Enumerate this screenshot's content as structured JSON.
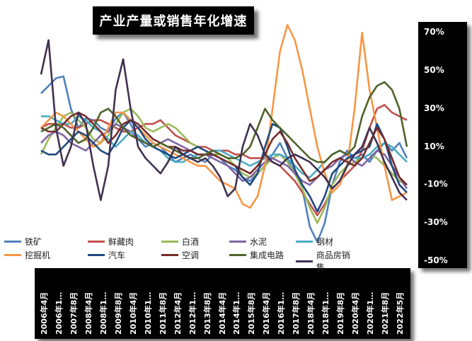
{
  "title": "产业产量或销售年化增速",
  "chart_data": {
    "type": "line",
    "title": "产业产量或销售年化增速",
    "ylim": [
      -0.5,
      0.7
    ],
    "yticks": [
      "70%",
      "50%",
      "30%",
      "10%",
      "-10%",
      "-30%",
      "-50%"
    ],
    "ytick_values": [
      0.7,
      0.5,
      0.3,
      0.1,
      -0.1,
      -0.3,
      -0.5
    ],
    "xticks": [
      "2006年4月",
      "2006年1…",
      "2007年8月",
      "2008年4月",
      "2008年1…",
      "2009年8月",
      "2010年4月",
      "2010年1…",
      "2011年8月",
      "2012年4月",
      "2012年1…",
      "2013年8月",
      "2014年4月",
      "2014年1…",
      "2015年8月",
      "2016年4月",
      "2016年1…",
      "2017年8月",
      "2018年4月",
      "2018年1…",
      "2019年8月",
      "2020年4月",
      "2020年1…",
      "2021年8月",
      "2022年5月"
    ],
    "legend_position": "bottom-left",
    "series": [
      {
        "name": "铁矿",
        "color": "#4F81BD",
        "values": [
          0.38,
          0.42,
          0.46,
          0.47,
          0.3,
          0.2,
          0.25,
          0.24,
          0.2,
          0.18,
          0.25,
          0.28,
          0.22,
          0.14,
          0.1,
          0.12,
          0.1,
          0.06,
          0.02,
          0.04,
          0.06,
          0.04,
          0.02,
          0.06,
          0.04,
          0.0,
          -0.02,
          -0.06,
          -0.08,
          -0.04,
          0.0,
          0.06,
          0.12,
          0.04,
          -0.04,
          -0.12,
          -0.32,
          -0.4,
          -0.3,
          -0.1,
          0.02,
          0.08,
          0.04,
          0.06,
          0.02,
          0.08,
          0.12,
          0.08,
          0.12,
          0.04
        ]
      },
      {
        "name": "鲜藏肉",
        "color": "#C0504D",
        "values": [
          0.2,
          0.22,
          0.22,
          0.22,
          0.2,
          0.2,
          0.22,
          0.24,
          0.24,
          0.22,
          0.2,
          0.18,
          0.18,
          0.2,
          0.22,
          0.22,
          0.24,
          0.2,
          0.16,
          0.14,
          0.12,
          0.1,
          0.1,
          0.08,
          0.08,
          0.08,
          0.06,
          0.06,
          0.04,
          0.04,
          0.04,
          0.02,
          0.0,
          -0.04,
          -0.08,
          -0.14,
          -0.2,
          -0.26,
          -0.2,
          -0.12,
          -0.08,
          -0.04,
          0.0,
          0.08,
          0.2,
          0.3,
          0.32,
          0.28,
          0.26,
          0.24
        ]
      },
      {
        "name": "白酒",
        "color": "#9BBB59",
        "values": [
          0.06,
          0.14,
          0.2,
          0.26,
          0.28,
          0.24,
          0.2,
          0.14,
          0.12,
          0.16,
          0.22,
          0.28,
          0.3,
          0.26,
          0.2,
          0.18,
          0.2,
          0.22,
          0.2,
          0.16,
          0.12,
          0.1,
          0.08,
          0.06,
          0.06,
          0.04,
          0.0,
          -0.04,
          -0.06,
          -0.04,
          0.0,
          0.04,
          0.06,
          0.02,
          -0.04,
          -0.12,
          -0.22,
          -0.3,
          -0.22,
          -0.1,
          -0.04,
          0.0,
          0.02,
          0.04,
          0.06,
          0.04,
          0.0,
          -0.04,
          -0.08,
          -0.1
        ]
      },
      {
        "name": "水泥",
        "color": "#8064A2",
        "values": [
          0.12,
          0.16,
          0.18,
          0.16,
          0.12,
          0.1,
          0.08,
          0.12,
          0.16,
          0.18,
          0.22,
          0.2,
          0.18,
          0.14,
          0.12,
          0.1,
          0.12,
          0.14,
          0.12,
          0.1,
          0.08,
          0.06,
          0.06,
          0.04,
          0.02,
          0.0,
          -0.04,
          -0.08,
          -0.06,
          -0.02,
          0.02,
          0.04,
          0.02,
          0.0,
          -0.04,
          -0.08,
          -0.1,
          -0.06,
          -0.02,
          0.0,
          0.04,
          0.06,
          0.02,
          0.0,
          0.04,
          0.08,
          0.06,
          0.0,
          -0.06,
          -0.12
        ]
      },
      {
        "name": "钢材",
        "color": "#4BACC6",
        "values": [
          0.26,
          0.26,
          0.24,
          0.22,
          0.22,
          0.26,
          0.24,
          0.2,
          0.18,
          0.14,
          0.1,
          0.14,
          0.18,
          0.16,
          0.12,
          0.1,
          0.08,
          0.04,
          0.02,
          0.02,
          0.04,
          0.06,
          0.06,
          0.08,
          0.08,
          0.06,
          0.04,
          0.02,
          0.0,
          0.02,
          0.04,
          0.06,
          0.06,
          0.04,
          0.0,
          -0.04,
          -0.06,
          -0.02,
          0.02,
          0.06,
          0.08,
          0.06,
          0.04,
          0.04,
          0.06,
          0.1,
          0.12,
          0.1,
          0.06,
          0.02
        ]
      },
      {
        "name": "挖掘机",
        "color": "#F79646",
        "values": [
          0.2,
          0.24,
          0.28,
          0.26,
          0.22,
          0.18,
          0.14,
          0.1,
          0.12,
          0.2,
          0.28,
          0.28,
          0.24,
          0.2,
          0.16,
          0.12,
          0.1,
          0.08,
          0.06,
          0.04,
          0.02,
          0.0,
          0.0,
          -0.04,
          -0.08,
          -0.1,
          -0.12,
          -0.2,
          -0.22,
          -0.16,
          0.0,
          0.3,
          0.6,
          0.74,
          0.66,
          0.5,
          0.3,
          0.1,
          -0.04,
          -0.14,
          -0.1,
          0.0,
          0.3,
          0.7,
          0.4,
          0.2,
          0.0,
          -0.18,
          -0.16,
          -0.14
        ]
      },
      {
        "name": "汽车",
        "color": "#1F497D",
        "values": [
          0.08,
          0.06,
          0.06,
          0.1,
          0.14,
          0.18,
          0.16,
          0.12,
          0.08,
          0.06,
          0.12,
          0.2,
          0.24,
          0.2,
          0.14,
          0.1,
          0.08,
          0.06,
          0.04,
          0.06,
          0.08,
          0.1,
          0.08,
          0.06,
          0.04,
          0.02,
          0.0,
          -0.06,
          -0.1,
          -0.04,
          0.1,
          0.22,
          0.2,
          0.1,
          -0.02,
          -0.1,
          -0.16,
          -0.24,
          -0.16,
          -0.04,
          0.0,
          0.04,
          0.06,
          0.08,
          0.1,
          0.22,
          0.14,
          0.0,
          -0.1,
          -0.14
        ]
      },
      {
        "name": "空调",
        "color": "#772C2A",
        "values": [
          0.2,
          0.18,
          0.18,
          0.22,
          0.26,
          0.28,
          0.26,
          0.22,
          0.18,
          0.12,
          0.16,
          0.22,
          0.24,
          0.22,
          0.18,
          0.14,
          0.12,
          0.1,
          0.1,
          0.08,
          0.08,
          0.06,
          0.06,
          0.06,
          0.04,
          0.02,
          0.0,
          -0.02,
          -0.04,
          0.0,
          0.06,
          0.14,
          0.18,
          0.12,
          0.04,
          -0.02,
          -0.08,
          -0.06,
          -0.02,
          0.02,
          0.04,
          0.02,
          0.0,
          0.04,
          0.12,
          0.2,
          0.14,
          0.04,
          -0.06,
          -0.1
        ]
      },
      {
        "name": "集成电路",
        "color": "#4F6228",
        "values": [
          0.18,
          0.2,
          0.22,
          0.2,
          0.16,
          0.12,
          0.14,
          0.2,
          0.28,
          0.3,
          0.26,
          0.2,
          0.16,
          0.14,
          0.12,
          0.1,
          0.12,
          0.1,
          0.08,
          0.06,
          0.04,
          0.04,
          0.06,
          0.08,
          0.06,
          0.04,
          0.04,
          0.06,
          0.1,
          0.2,
          0.3,
          0.24,
          0.2,
          0.16,
          0.12,
          0.08,
          0.04,
          0.02,
          0.02,
          0.06,
          0.08,
          0.06,
          0.1,
          0.26,
          0.36,
          0.42,
          0.44,
          0.4,
          0.3,
          0.1
        ]
      },
      {
        "name": "商品房销售",
        "color": "#403151",
        "values": [
          0.48,
          0.66,
          0.2,
          0.0,
          0.1,
          0.28,
          0.22,
          0.0,
          -0.18,
          0.0,
          0.4,
          0.56,
          0.3,
          0.1,
          0.04,
          0.0,
          -0.04,
          0.02,
          0.1,
          0.06,
          0.04,
          0.02,
          0.04,
          0.0,
          -0.06,
          -0.16,
          -0.12,
          0.1,
          0.22,
          0.16,
          0.06,
          0.02,
          0.0,
          0.04,
          0.06,
          0.04,
          0.02,
          -0.02,
          -0.06,
          -0.12,
          -0.08,
          0.0,
          0.06,
          0.1,
          0.2,
          0.12,
          0.02,
          -0.06,
          -0.14,
          -0.18
        ]
      }
    ]
  }
}
